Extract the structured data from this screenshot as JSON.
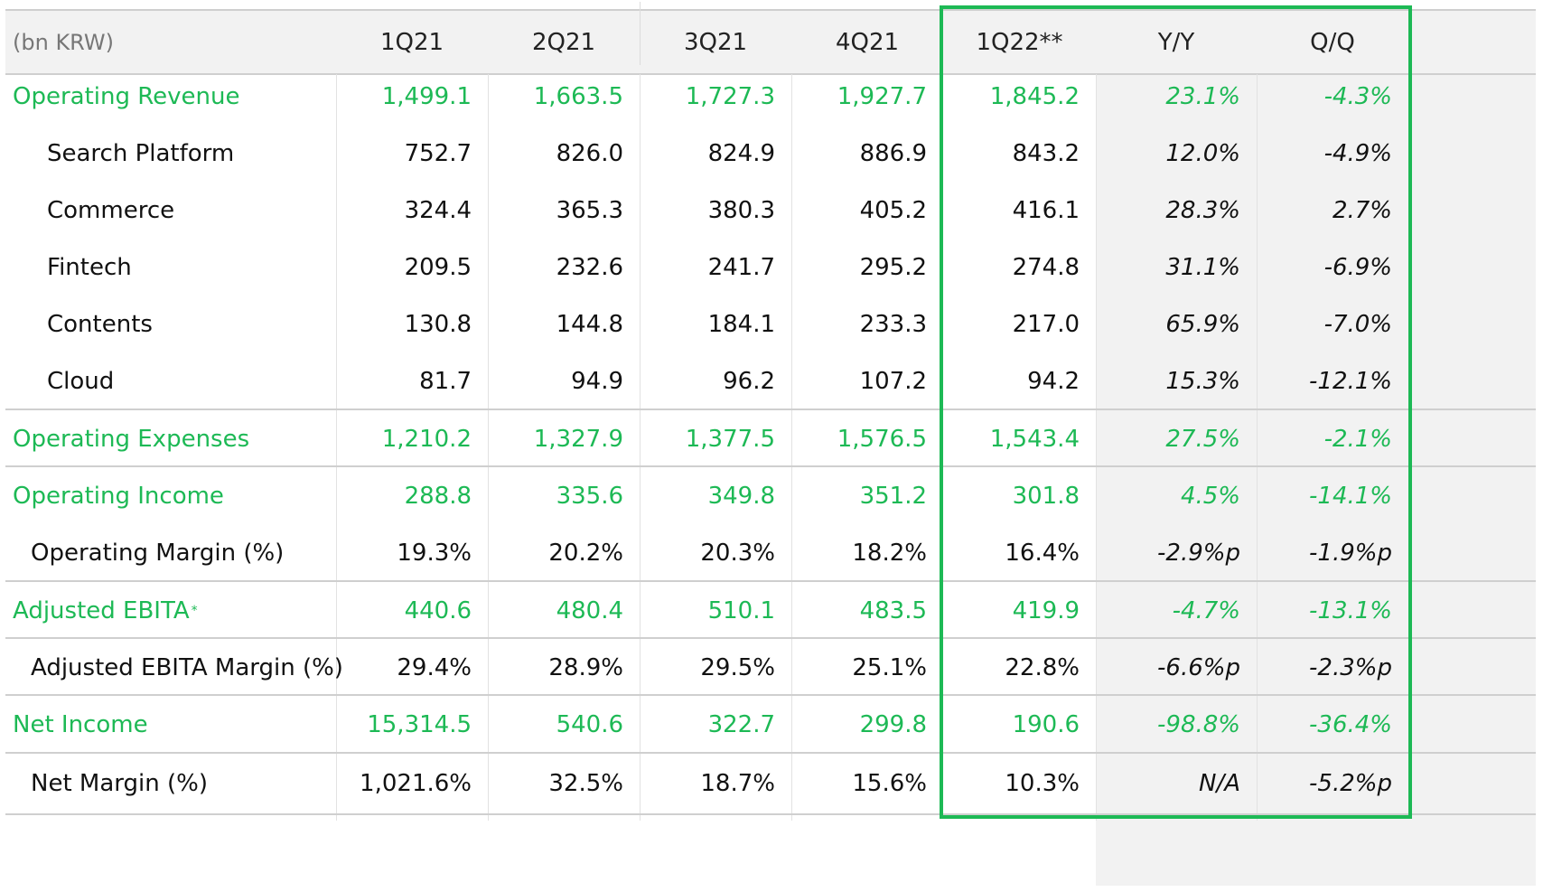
{
  "header": {
    "unit": "(bn KRW)",
    "columns": [
      "1Q21",
      "2Q21",
      "3Q21",
      "4Q21",
      "1Q22**",
      "Y/Y",
      "Q/Q"
    ]
  },
  "rows": [
    {
      "label": "Operating Revenue",
      "values": [
        "1,499.1",
        "1,663.5",
        "1,727.3",
        "1,927.7",
        "1,845.2",
        "23.1%",
        "-4.3%"
      ]
    },
    {
      "label": "Search Platform",
      "values": [
        "752.7",
        "826.0",
        "824.9",
        "886.9",
        "843.2",
        "12.0%",
        "-4.9%"
      ]
    },
    {
      "label": "Commerce",
      "values": [
        "324.4",
        "365.3",
        "380.3",
        "405.2",
        "416.1",
        "28.3%",
        "2.7%"
      ]
    },
    {
      "label": "Fintech",
      "values": [
        "209.5",
        "232.6",
        "241.7",
        "295.2",
        "274.8",
        "31.1%",
        "-6.9%"
      ]
    },
    {
      "label": "Contents",
      "values": [
        "130.8",
        "144.8",
        "184.1",
        "233.3",
        "217.0",
        "65.9%",
        "-7.0%"
      ]
    },
    {
      "label": "Cloud",
      "values": [
        "81.7",
        "94.9",
        "96.2",
        "107.2",
        "94.2",
        "15.3%",
        "-12.1%"
      ]
    },
    {
      "label": "Operating Expenses",
      "values": [
        "1,210.2",
        "1,327.9",
        "1,377.5",
        "1,576.5",
        "1,543.4",
        "27.5%",
        "-2.1%"
      ]
    },
    {
      "label": "Operating Income",
      "values": [
        "288.8",
        "335.6",
        "349.8",
        "351.2",
        "301.8",
        "4.5%",
        "-14.1%"
      ]
    },
    {
      "label": "Operating Margin (%)",
      "values": [
        "19.3%",
        "20.2%",
        "20.3%",
        "18.2%",
        "16.4%",
        "-2.9%p",
        "-1.9%p"
      ]
    },
    {
      "label": "Adjusted EBITA",
      "sup": "*",
      "values": [
        "440.6",
        "480.4",
        "510.1",
        "483.5",
        "419.9",
        "-4.7%",
        "-13.1%"
      ]
    },
    {
      "label": "Adjusted EBITA Margin (%)",
      "values": [
        "29.4%",
        "28.9%",
        "29.5%",
        "25.1%",
        "22.8%",
        "-6.6%p",
        "-2.3%p"
      ]
    },
    {
      "label": "Net Income",
      "values": [
        "15,314.5",
        "540.6",
        "322.7",
        "299.8",
        "190.6",
        "-98.8%",
        "-36.4%"
      ]
    },
    {
      "label": "Net Margin (%)",
      "values": [
        "1,021.6%",
        "32.5%",
        "18.7%",
        "15.6%",
        "10.3%",
        "N/A",
        "-5.2%p"
      ]
    }
  ],
  "colors": {
    "accent": "#1db955",
    "header_bg": "#f2f2f2",
    "rule": "#cfcfcf"
  }
}
